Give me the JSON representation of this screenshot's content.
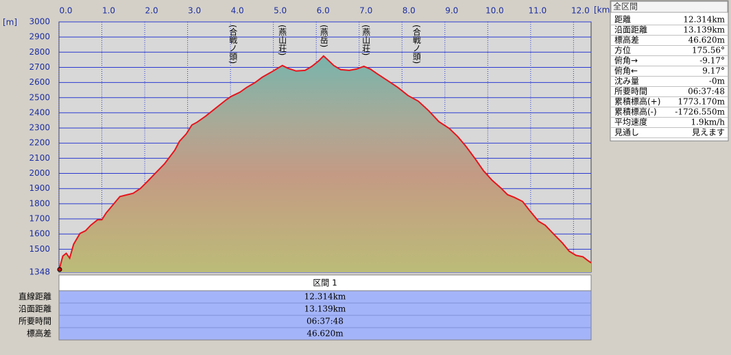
{
  "chart_data": {
    "type": "line",
    "y_label": "[m]",
    "x_label": "[km]",
    "x": [
      0,
      0.09,
      0.17,
      0.25,
      0.34,
      0.49,
      0.62,
      0.74,
      0.9,
      1.0,
      1.1,
      1.26,
      1.42,
      1.54,
      1.73,
      1.9,
      2.06,
      2.26,
      2.46,
      2.7,
      2.81,
      2.97,
      3.1,
      3.22,
      3.42,
      3.66,
      3.9,
      4.02,
      4.22,
      4.38,
      4.57,
      4.74,
      4.94,
      5.1,
      5.21,
      5.34,
      5.53,
      5.74,
      5.9,
      6.06,
      6.17,
      6.26,
      6.41,
      6.57,
      6.77,
      6.94,
      7.11,
      7.26,
      7.42,
      7.66,
      7.9,
      8.14,
      8.38,
      8.62,
      8.86,
      9.1,
      9.3,
      9.5,
      9.7,
      9.9,
      10.1,
      10.3,
      10.46,
      10.62,
      10.81,
      10.97,
      11.18,
      11.34,
      11.54,
      11.74,
      11.9,
      12.06,
      12.22,
      12.32,
      12.41
    ],
    "values": [
      1360,
      1455,
      1473,
      1441,
      1532,
      1604,
      1622,
      1658,
      1694,
      1694,
      1739,
      1793,
      1847,
      1856,
      1869,
      1901,
      1946,
      2005,
      2063,
      2153,
      2212,
      2261,
      2320,
      2338,
      2378,
      2432,
      2486,
      2509,
      2536,
      2568,
      2599,
      2635,
      2667,
      2694,
      2712,
      2694,
      2676,
      2680,
      2707,
      2743,
      2775,
      2752,
      2712,
      2685,
      2680,
      2689,
      2707,
      2689,
      2658,
      2613,
      2568,
      2514,
      2477,
      2414,
      2342,
      2297,
      2243,
      2176,
      2099,
      2018,
      1955,
      1905,
      1860,
      1842,
      1815,
      1757,
      1685,
      1658,
      1599,
      1541,
      1486,
      1459,
      1450,
      1428,
      1410
    ],
    "color": "#e8141c",
    "xlim": [
      0,
      12.41
    ],
    "ylim": [
      1348,
      3000
    ],
    "xticks": [
      {
        "value": 0,
        "label": "0.0"
      },
      {
        "value": 1,
        "label": "1.0"
      },
      {
        "value": 2,
        "label": "2.0"
      },
      {
        "value": 3,
        "label": "3.0"
      },
      {
        "value": 4,
        "label": "4.0"
      },
      {
        "value": 5,
        "label": "5.0"
      },
      {
        "value": 6,
        "label": "6.0"
      },
      {
        "value": 7,
        "label": "7.0"
      },
      {
        "value": 8,
        "label": "8.0"
      },
      {
        "value": 9,
        "label": "9.0"
      },
      {
        "value": 10,
        "label": "10.0"
      },
      {
        "value": 11,
        "label": "11.0"
      },
      {
        "value": 12,
        "label": "12.0"
      }
    ],
    "yticks": [
      1348,
      1500,
      1600,
      1700,
      1800,
      1900,
      2000,
      2100,
      2200,
      2300,
      2400,
      2500,
      2600,
      2700,
      2800,
      2900,
      3000
    ],
    "grid": true,
    "annotations": [
      {
        "text": "(合戦ノ頭)",
        "x": 4.05
      },
      {
        "text": "(燕山荘)",
        "x": 5.2
      },
      {
        "text": "(燕岳)",
        "x": 6.17
      },
      {
        "text": "(燕山荘)",
        "x": 7.15
      },
      {
        "text": "(合戦ノ頭)",
        "x": 8.33
      }
    ]
  },
  "summary": {
    "title": "全区間",
    "rows": [
      [
        "距離",
        "12.314km"
      ],
      [
        "沿面距離",
        "13.139km"
      ],
      [
        "標高差",
        "46.620m"
      ],
      [
        "方位",
        "175.56°"
      ],
      [
        "俯角→",
        "-9.17°"
      ],
      [
        "俯角←",
        "9.17°"
      ],
      [
        "沈み量",
        "-0m"
      ],
      [
        "所要時間",
        "06:37:48"
      ],
      [
        "累積標高(+)",
        "1773.170m"
      ],
      [
        "累積標高(-)",
        "-1726.550m"
      ],
      [
        "平均速度",
        "1.9km/h"
      ],
      [
        "見通し",
        "見えます"
      ]
    ]
  },
  "sections": {
    "header": "区間 1",
    "rows": [
      [
        "直線距離",
        "12.314km"
      ],
      [
        "沿面距離",
        "13.139km"
      ],
      [
        "所要時間",
        "06:37:48"
      ],
      [
        "標高差",
        "46.620m"
      ]
    ]
  }
}
